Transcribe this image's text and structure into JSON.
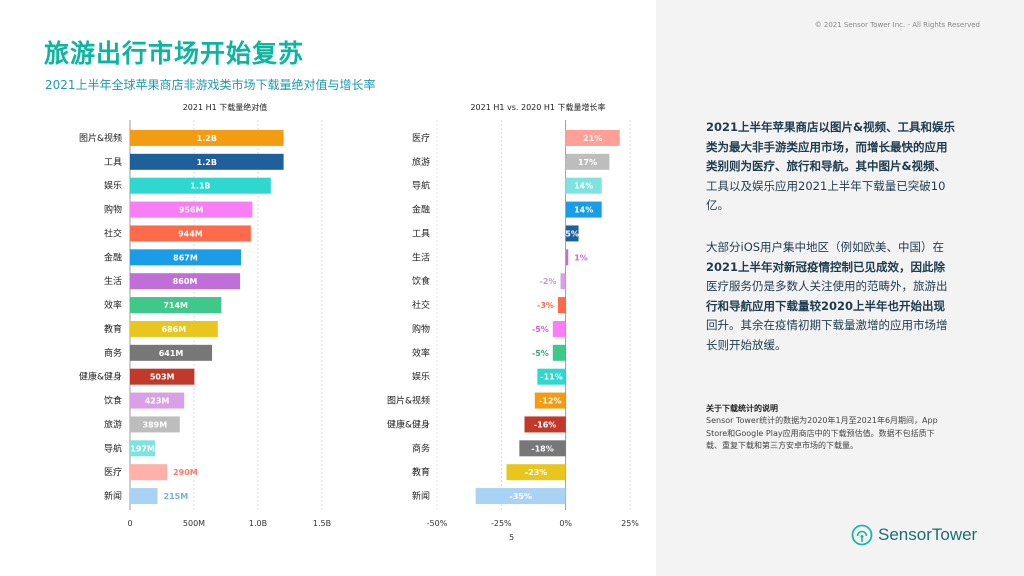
{
  "header": {
    "title": "旅游出行市场开始复苏",
    "subtitle": "2021上半年全球苹果商店非游戏类市场下载量绝对值与增长率",
    "copyright": "© 2021 Sensor Tower Inc. - All Rights Reserved"
  },
  "page_number": "5",
  "colors": {
    "title": "#0bb5a0",
    "panel_bg": "#f3f3f3"
  },
  "chart_data": [
    {
      "type": "bar",
      "orientation": "horizontal",
      "title": "2021 H1 下载量绝对值",
      "categories": [
        "图片&视频",
        "工具",
        "娱乐",
        "购物",
        "社交",
        "金融",
        "生活",
        "效率",
        "教育",
        "商务",
        "健康&健身",
        "饮食",
        "旅游",
        "导航",
        "医疗",
        "新闻"
      ],
      "values": [
        1200,
        1200,
        1100,
        956,
        944,
        867,
        860,
        714,
        686,
        641,
        503,
        423,
        389,
        197,
        290,
        215
      ],
      "unit": "M downloads",
      "labels": [
        "1.2B",
        "1.2B",
        "1.1B",
        "956M",
        "944M",
        "867M",
        "860M",
        "714M",
        "686M",
        "641M",
        "503M",
        "423M",
        "389M",
        "197M",
        "290M",
        "215M"
      ],
      "colors": [
        "#f39c12",
        "#1f5f9c",
        "#2ed8cf",
        "#f77ef5",
        "#ff6b4a",
        "#1a9de8",
        "#c06fd8",
        "#3ec98a",
        "#e8c61e",
        "#777777",
        "#c0392b",
        "#d9a0e8",
        "#bdbdbd",
        "#7ee3e0",
        "#ffb0a8",
        "#a8d3f5"
      ],
      "label_colors": [
        "#ffffff",
        "#ffffff",
        "#ffffff",
        "#ffffff",
        "#ffffff",
        "#ffffff",
        "#ffffff",
        "#ffffff",
        "#ffffff",
        "#ffffff",
        "#ffffff",
        "#ffffff",
        "#ffffff",
        "#ffffff",
        "#ff7a6a",
        "#6fb3e8"
      ],
      "x_ticks": [
        "0",
        "500M",
        "1.0B",
        "1.5B"
      ],
      "xlim": [
        0,
        1500
      ]
    },
    {
      "type": "bar",
      "orientation": "horizontal",
      "title": "2021 H1 vs. 2020 H1 下载量增长率",
      "categories": [
        "医疗",
        "旅游",
        "导航",
        "金融",
        "工具",
        "生活",
        "饮食",
        "社交",
        "购物",
        "效率",
        "娱乐",
        "图片&视频",
        "健康&健身",
        "商务",
        "教育",
        "新闻"
      ],
      "values": [
        21,
        17,
        14,
        14,
        5,
        1,
        -2,
        -3,
        -5,
        -5,
        -11,
        -12,
        -16,
        -18,
        -23,
        -35
      ],
      "unit": "%",
      "labels": [
        "21%",
        "17%",
        "14%",
        "14%",
        "5%",
        "1%",
        "-2%",
        "-3%",
        "-5%",
        "-5%",
        "-11%",
        "-12%",
        "-16%",
        "-18%",
        "-23%",
        "-35%"
      ],
      "colors": [
        "#ff9f96",
        "#bdbdbd",
        "#7ee3e0",
        "#1a9de8",
        "#1f5f9c",
        "#c06fd8",
        "#d9a0e8",
        "#ff6b4a",
        "#f77ef5",
        "#3ec98a",
        "#2ed8cf",
        "#f39c12",
        "#c0392b",
        "#777777",
        "#e8c61e",
        "#a8d3f5"
      ],
      "label_colors": [
        "#ffffff",
        "#ffffff",
        "#ffffff",
        "#ffffff",
        "#ffffff",
        "#c06fd8",
        "#c39ad8",
        "#ff6b4a",
        "#d860d8",
        "#3aa876",
        "#ffffff",
        "#ffffff",
        "#ffffff",
        "#ffffff",
        "#ffffff",
        "#ffffff"
      ],
      "x_ticks": [
        "-50%",
        "-25%",
        "0%",
        "25%"
      ],
      "xlim": [
        -50,
        25
      ]
    }
  ],
  "sidebar": {
    "para1_lines": [
      "2021上半年苹果商店以图片&视频、工具和娱乐",
      "类为最大非手游类应用市场，而增长最快的应用",
      "类别则为医疗、旅行和导航。其中图片&视频、",
      "工具以及娱乐应用2021上半年下载量已突破10",
      "亿。"
    ],
    "para2_lines": [
      "大部分iOS用户集中地区（例如欧美、中国）在",
      "2021上半年对新冠疫情控制已见成效，因此除",
      "医疗服务仍是多数人关注使用的范畴外，旅游出",
      "行和导航应用下载量较2020上半年也开始出现",
      "回升。其余在疫情初期下载量激增的应用市场增",
      "长则开始放缓。"
    ],
    "note_title": "关于下载统计的说明",
    "note_lines": [
      "Sensor Tower统计的数据为2020年1月至2021年6月期间，App",
      "Store和Google Play应用商店中的下载预估值。数据不包括质下",
      "载、重复下载和第三方安卓市场的下载量。"
    ]
  },
  "logo": {
    "text": "SensorTower",
    "icon": "sensor-tower-logo-icon"
  }
}
